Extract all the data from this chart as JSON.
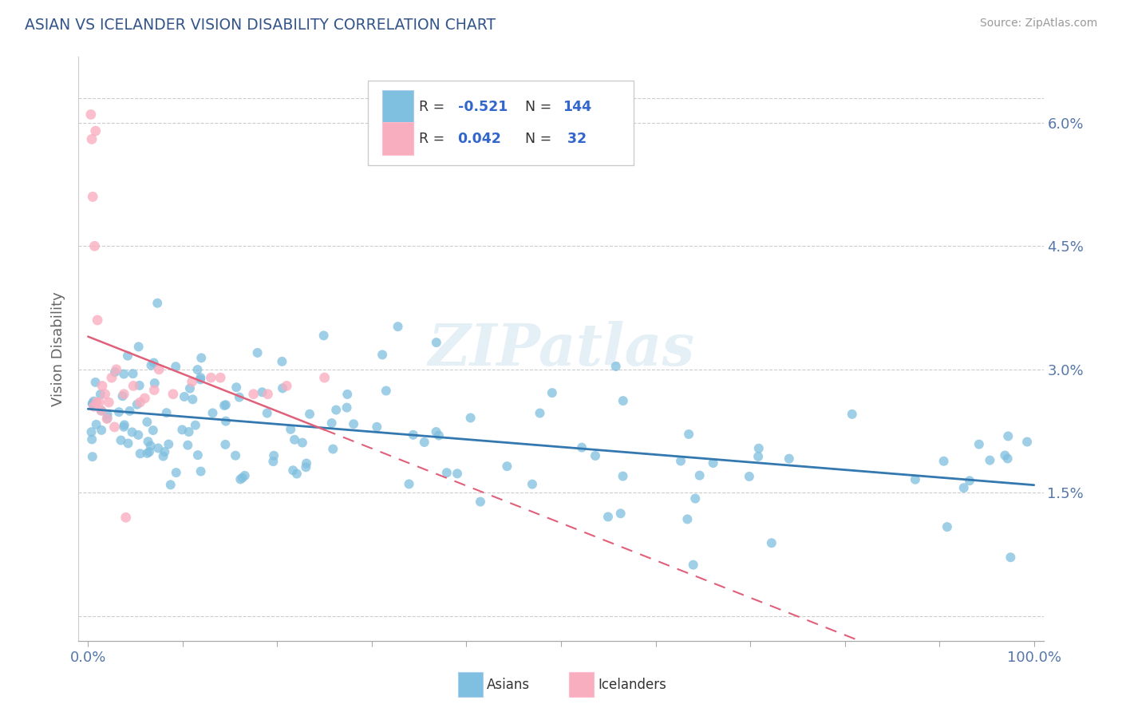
{
  "title": "ASIAN VS ICELANDER VISION DISABILITY CORRELATION CHART",
  "source": "Source: ZipAtlas.com",
  "ylabel": "Vision Disability",
  "asian_R": -0.521,
  "asian_N": 144,
  "icelander_R": 0.042,
  "icelander_N": 32,
  "asian_color": "#7fbfdf",
  "icelander_color": "#f9aec0",
  "asian_line_color": "#3478b0",
  "icelander_line_color": "#e0607a",
  "watermark": "ZIPatlas",
  "ytick_vals": [
    0.0,
    0.015,
    0.03,
    0.045,
    0.06
  ],
  "ytick_labels": [
    "",
    "1.5%",
    "3.0%",
    "4.5%",
    "6.0%"
  ],
  "ylim": [
    -0.003,
    0.068
  ],
  "xlim": [
    -0.01,
    1.01
  ]
}
